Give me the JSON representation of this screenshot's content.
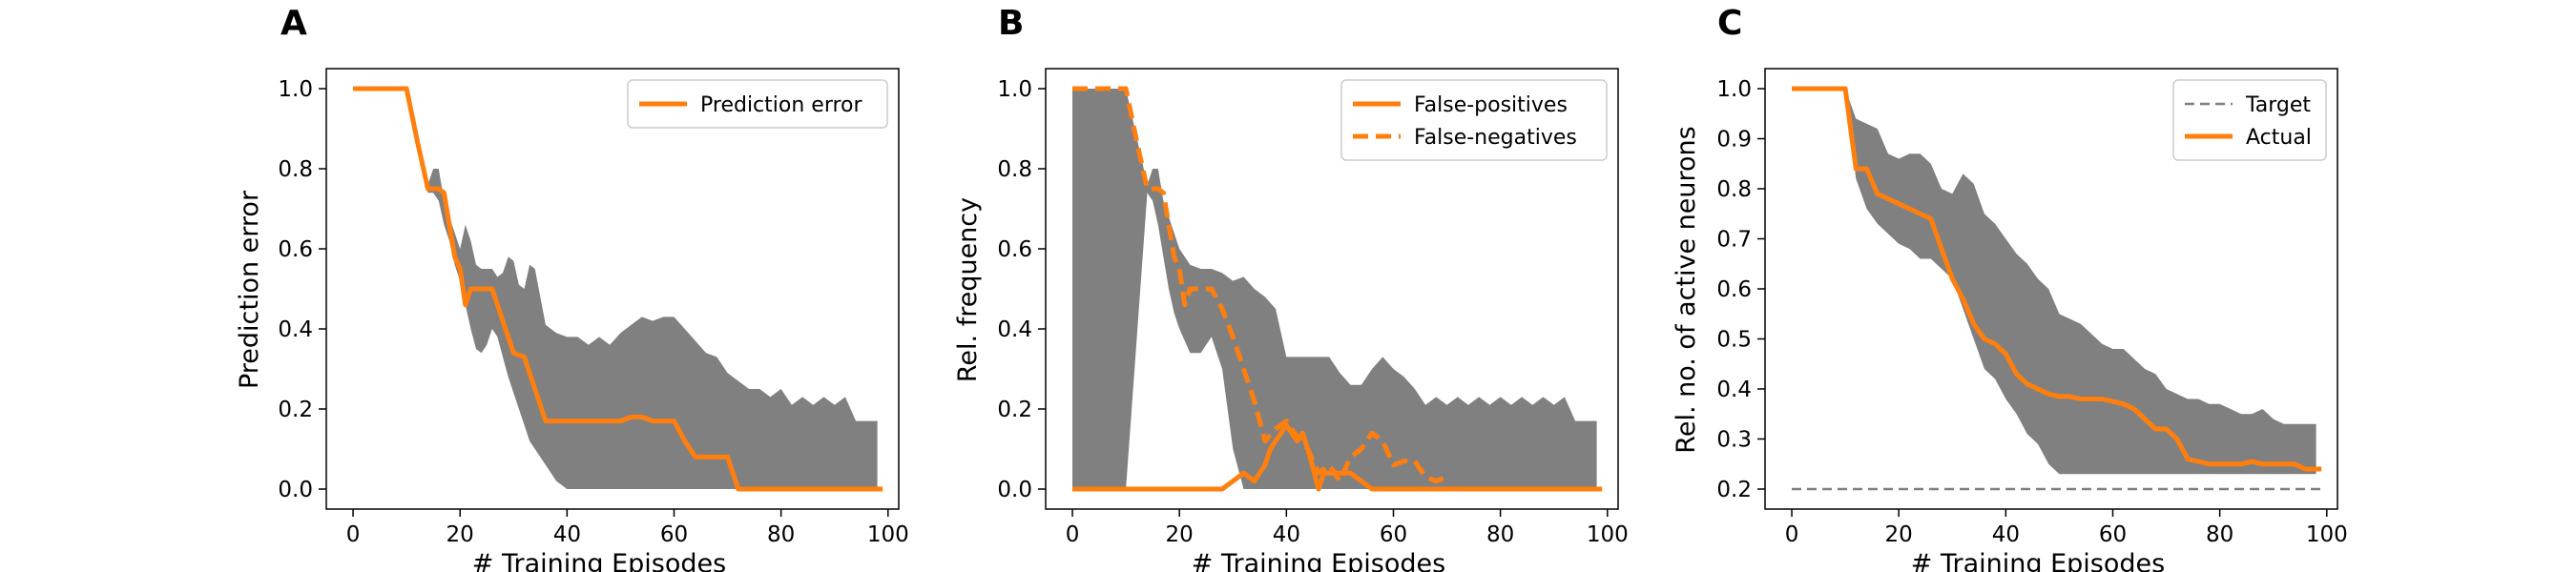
{
  "chart_data": [
    {
      "type": "line",
      "panel_label": "A",
      "xlabel": "# Training Episodes",
      "ylabel": "Prediction error",
      "xlim": [
        -5,
        102
      ],
      "ylim": [
        -0.05,
        1.05
      ],
      "xticks": [
        0,
        20,
        40,
        60,
        80,
        100
      ],
      "yticks": [
        0.0,
        0.2,
        0.4,
        0.6,
        0.8,
        1.0
      ],
      "ytick_decimals": 1,
      "legend_position": "top-right",
      "band": {
        "x": [
          0,
          10,
          14,
          15,
          16,
          17,
          18,
          19,
          20,
          21,
          22,
          23,
          24,
          25,
          26,
          27,
          28,
          29,
          30,
          31,
          32,
          33,
          34,
          35,
          36,
          38,
          40,
          42,
          44,
          46,
          48,
          50,
          52,
          54,
          56,
          58,
          60,
          62,
          64,
          66,
          68,
          70,
          72,
          74,
          76,
          78,
          80,
          82,
          84,
          86,
          88,
          90,
          92,
          94,
          96,
          98
        ],
        "upper": [
          1.0,
          1.0,
          0.76,
          0.8,
          0.8,
          0.72,
          0.68,
          0.64,
          0.6,
          0.66,
          0.62,
          0.56,
          0.55,
          0.55,
          0.55,
          0.53,
          0.54,
          0.58,
          0.57,
          0.51,
          0.5,
          0.56,
          0.55,
          0.48,
          0.41,
          0.39,
          0.38,
          0.38,
          0.36,
          0.38,
          0.36,
          0.39,
          0.41,
          0.43,
          0.42,
          0.43,
          0.43,
          0.4,
          0.37,
          0.34,
          0.33,
          0.29,
          0.27,
          0.25,
          0.25,
          0.23,
          0.25,
          0.21,
          0.23,
          0.21,
          0.23,
          0.21,
          0.23,
          0.17,
          0.17,
          0.17
        ],
        "lower": [
          1.0,
          1.0,
          0.74,
          0.74,
          0.72,
          0.66,
          0.62,
          0.56,
          0.52,
          0.46,
          0.4,
          0.35,
          0.34,
          0.36,
          0.4,
          0.38,
          0.33,
          0.28,
          0.24,
          0.2,
          0.16,
          0.12,
          0.1,
          0.08,
          0.06,
          0.02,
          0.0,
          0.0,
          0.0,
          0.0,
          0.0,
          0.0,
          0.0,
          0.0,
          0.0,
          0.0,
          0.0,
          0.0,
          0.0,
          0.0,
          0.0,
          0.0,
          0.0,
          0.0,
          0.0,
          0.0,
          0.0,
          0.0,
          0.0,
          0.0,
          0.0,
          0.0,
          0.0,
          0.0,
          0.0,
          0.0
        ]
      },
      "series": [
        {
          "name": "Prediction error",
          "style": "solid",
          "x": [
            0,
            10,
            12,
            14,
            16,
            17,
            18,
            19,
            20,
            21,
            22,
            23,
            24,
            26,
            28,
            30,
            32,
            34,
            36,
            38,
            40,
            42,
            44,
            46,
            48,
            50,
            52,
            54,
            56,
            58,
            60,
            62,
            64,
            66,
            68,
            70,
            72,
            74,
            80,
            90,
            99
          ],
          "y": [
            1.0,
            1.0,
            0.87,
            0.75,
            0.75,
            0.74,
            0.66,
            0.58,
            0.55,
            0.46,
            0.5,
            0.5,
            0.5,
            0.5,
            0.42,
            0.34,
            0.33,
            0.25,
            0.17,
            0.17,
            0.17,
            0.17,
            0.17,
            0.17,
            0.17,
            0.17,
            0.18,
            0.18,
            0.17,
            0.17,
            0.17,
            0.12,
            0.08,
            0.08,
            0.08,
            0.08,
            0.0,
            0.0,
            0.0,
            0.0,
            0.0
          ]
        }
      ]
    },
    {
      "type": "line",
      "panel_label": "B",
      "xlabel": "# Training Episodes",
      "ylabel": "Rel. frequency",
      "xlim": [
        -5,
        102
      ],
      "ylim": [
        -0.05,
        1.05
      ],
      "xticks": [
        0,
        20,
        40,
        60,
        80,
        100
      ],
      "yticks": [
        0.0,
        0.2,
        0.4,
        0.6,
        0.8,
        1.0
      ],
      "ytick_decimals": 1,
      "legend_position": "top-right",
      "band": {
        "x": [
          0,
          10,
          14,
          15,
          16,
          17,
          18,
          19,
          20,
          22,
          24,
          26,
          28,
          30,
          32,
          34,
          36,
          38,
          40,
          42,
          44,
          46,
          48,
          50,
          52,
          54,
          56,
          58,
          60,
          62,
          64,
          66,
          68,
          70,
          72,
          74,
          76,
          78,
          80,
          82,
          84,
          86,
          88,
          90,
          92,
          94,
          96,
          98
        ],
        "upper": [
          1.0,
          1.0,
          0.76,
          0.8,
          0.8,
          0.72,
          0.68,
          0.64,
          0.6,
          0.56,
          0.55,
          0.55,
          0.54,
          0.52,
          0.53,
          0.5,
          0.48,
          0.45,
          0.33,
          0.33,
          0.33,
          0.33,
          0.33,
          0.29,
          0.26,
          0.26,
          0.3,
          0.33,
          0.3,
          0.28,
          0.25,
          0.21,
          0.23,
          0.21,
          0.23,
          0.21,
          0.23,
          0.21,
          0.23,
          0.21,
          0.23,
          0.21,
          0.23,
          0.21,
          0.23,
          0.17,
          0.17,
          0.17
        ],
        "lower": [
          0.0,
          0.0,
          0.74,
          0.72,
          0.66,
          0.58,
          0.5,
          0.44,
          0.4,
          0.34,
          0.34,
          0.38,
          0.3,
          0.1,
          0.0,
          0.0,
          0.0,
          0.0,
          0.0,
          0.0,
          0.0,
          0.0,
          0.0,
          0.0,
          0.0,
          0.0,
          0.0,
          0.0,
          0.0,
          0.0,
          0.0,
          0.0,
          0.0,
          0.0,
          0.0,
          0.0,
          0.0,
          0.0,
          0.0,
          0.0,
          0.0,
          0.0,
          0.0,
          0.0,
          0.0,
          0.0,
          0.0,
          0.0
        ]
      },
      "series": [
        {
          "name": "False-positives",
          "style": "solid",
          "x": [
            0,
            20,
            26,
            28,
            30,
            32,
            34,
            36,
            37,
            38,
            40,
            42,
            43,
            44,
            45,
            46,
            47,
            48,
            50,
            52,
            54,
            56,
            60,
            70,
            80,
            99
          ],
          "y": [
            0.0,
            0.0,
            0.0,
            0.0,
            0.02,
            0.04,
            0.02,
            0.06,
            0.1,
            0.12,
            0.16,
            0.12,
            0.14,
            0.1,
            0.05,
            0.0,
            0.04,
            0.04,
            0.04,
            0.04,
            0.02,
            0.0,
            0.0,
            0.0,
            0.0,
            0.0
          ]
        },
        {
          "name": "False-negatives",
          "style": "dashed",
          "x": [
            0,
            10,
            12,
            14,
            16,
            17,
            18,
            19,
            20,
            21,
            22,
            23,
            24,
            26,
            28,
            30,
            32,
            34,
            36,
            38,
            40,
            42,
            44,
            46,
            48,
            50,
            52,
            54,
            56,
            58,
            60,
            62,
            64,
            66,
            68,
            70
          ],
          "y": [
            1.0,
            1.0,
            0.87,
            0.75,
            0.75,
            0.74,
            0.66,
            0.58,
            0.55,
            0.46,
            0.5,
            0.5,
            0.5,
            0.5,
            0.45,
            0.38,
            0.3,
            0.22,
            0.12,
            0.15,
            0.17,
            0.13,
            0.1,
            0.04,
            0.06,
            0.02,
            0.08,
            0.1,
            0.14,
            0.12,
            0.06,
            0.07,
            0.07,
            0.03,
            0.02,
            0.03
          ]
        }
      ]
    },
    {
      "type": "line",
      "panel_label": "C",
      "xlabel": "# Training Episodes",
      "ylabel": "Rel. no. of active neurons",
      "xlim": [
        -5,
        102
      ],
      "ylim": [
        0.16,
        1.04
      ],
      "xticks": [
        0,
        20,
        40,
        60,
        80,
        100
      ],
      "yticks": [
        0.2,
        0.3,
        0.4,
        0.5,
        0.6,
        0.7,
        0.8,
        0.9,
        1.0
      ],
      "ytick_decimals": 1,
      "legend_position": "top-right",
      "band": {
        "x": [
          0,
          10,
          12,
          14,
          16,
          18,
          20,
          22,
          24,
          26,
          28,
          30,
          32,
          34,
          36,
          38,
          40,
          42,
          44,
          46,
          48,
          50,
          52,
          54,
          56,
          58,
          60,
          62,
          64,
          66,
          68,
          70,
          72,
          74,
          76,
          78,
          80,
          82,
          84,
          86,
          88,
          90,
          92,
          94,
          96,
          98
        ],
        "upper": [
          1.0,
          1.0,
          0.94,
          0.93,
          0.92,
          0.87,
          0.86,
          0.87,
          0.87,
          0.85,
          0.8,
          0.79,
          0.83,
          0.81,
          0.75,
          0.73,
          0.7,
          0.67,
          0.65,
          0.62,
          0.6,
          0.55,
          0.54,
          0.53,
          0.51,
          0.49,
          0.48,
          0.48,
          0.46,
          0.44,
          0.43,
          0.4,
          0.39,
          0.38,
          0.38,
          0.37,
          0.37,
          0.36,
          0.35,
          0.35,
          0.36,
          0.34,
          0.33,
          0.33,
          0.33,
          0.33
        ],
        "lower": [
          1.0,
          1.0,
          0.82,
          0.76,
          0.73,
          0.71,
          0.69,
          0.68,
          0.66,
          0.66,
          0.64,
          0.62,
          0.56,
          0.5,
          0.44,
          0.42,
          0.38,
          0.35,
          0.31,
          0.29,
          0.25,
          0.23,
          0.23,
          0.23,
          0.23,
          0.23,
          0.23,
          0.23,
          0.23,
          0.23,
          0.23,
          0.23,
          0.23,
          0.23,
          0.23,
          0.23,
          0.23,
          0.23,
          0.23,
          0.23,
          0.23,
          0.23,
          0.23,
          0.23,
          0.23,
          0.23
        ]
      },
      "series": [
        {
          "name": "Target",
          "style": "dashed-gray",
          "x": [
            0,
            99
          ],
          "y": [
            0.2,
            0.2
          ]
        },
        {
          "name": "Actual",
          "style": "solid",
          "x": [
            0,
            10,
            12,
            14,
            16,
            18,
            20,
            22,
            24,
            26,
            28,
            30,
            32,
            34,
            36,
            38,
            40,
            42,
            44,
            46,
            48,
            50,
            52,
            54,
            56,
            58,
            60,
            62,
            64,
            66,
            68,
            70,
            72,
            74,
            76,
            78,
            80,
            82,
            84,
            86,
            88,
            90,
            92,
            94,
            96,
            98,
            99
          ],
          "y": [
            1.0,
            1.0,
            0.84,
            0.84,
            0.79,
            0.78,
            0.77,
            0.76,
            0.75,
            0.74,
            0.68,
            0.62,
            0.58,
            0.53,
            0.5,
            0.49,
            0.47,
            0.43,
            0.41,
            0.4,
            0.39,
            0.385,
            0.385,
            0.38,
            0.38,
            0.38,
            0.375,
            0.37,
            0.36,
            0.34,
            0.32,
            0.32,
            0.3,
            0.26,
            0.255,
            0.25,
            0.25,
            0.25,
            0.25,
            0.255,
            0.25,
            0.25,
            0.25,
            0.25,
            0.24,
            0.24,
            0.24
          ]
        }
      ]
    }
  ]
}
